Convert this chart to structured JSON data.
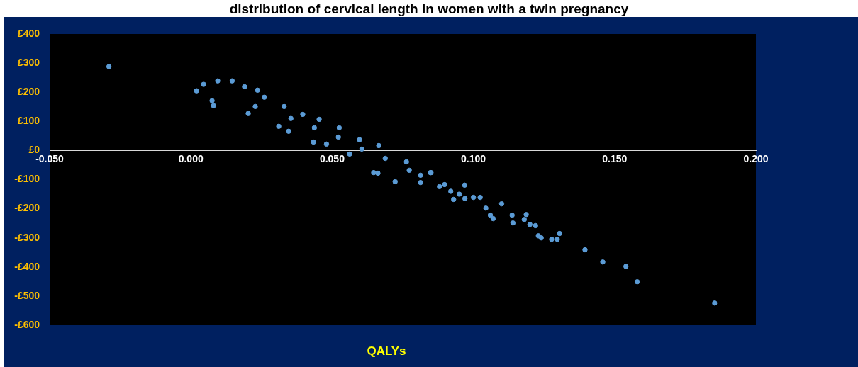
{
  "chart_data": {
    "type": "scatter",
    "title": "distribution of cervical length in women with a twin pregnancy",
    "xlabel": "QALYs",
    "marker": "circle",
    "xlim": [
      -0.05,
      0.2
    ],
    "xticks": [
      {
        "value": -0.05,
        "label": "-0.050"
      },
      {
        "value": 0,
        "label": "0.000"
      },
      {
        "value": 0.05,
        "label": "0.050"
      },
      {
        "value": 0.1,
        "label": "0.100"
      },
      {
        "value": 0.15,
        "label": "0.150"
      },
      {
        "value": 0.2,
        "label": "0.200"
      }
    ],
    "ylim": [
      -600,
      400
    ],
    "yticks": [
      {
        "value": 400,
        "label": "£400"
      },
      {
        "value": 300,
        "label": "£300"
      },
      {
        "value": 200,
        "label": "£200"
      },
      {
        "value": 100,
        "label": "£100"
      },
      {
        "value": 0,
        "label": "£0"
      },
      {
        "value": -100,
        "label": "-£100"
      },
      {
        "value": -200,
        "label": "-£200"
      },
      {
        "value": -300,
        "label": "-£300"
      },
      {
        "value": -400,
        "label": "-£400"
      },
      {
        "value": -500,
        "label": "-£500"
      },
      {
        "value": -600,
        "label": "-£600"
      }
    ],
    "series": [
      {
        "color": "#5b9bd5",
        "x": [
          -0.029,
          0.002,
          0.0045,
          0.0095,
          0.0146,
          0.0075,
          0.008,
          0.019,
          0.0236,
          0.026,
          0.033,
          0.0396,
          0.0454,
          0.0525,
          0.0597,
          0.0665,
          0.0763,
          0.085,
          0.0203,
          0.0311,
          0.0346,
          0.0434,
          0.048,
          0.0562,
          0.0647,
          0.0662,
          0.0723,
          0.0228,
          0.0354,
          0.0437,
          0.0522,
          0.0605,
          0.0688,
          0.0813,
          0.0898,
          0.0773,
          0.0848,
          0.088,
          0.0813,
          0.092,
          0.095,
          0.097,
          0.0969,
          0.093,
          0.1,
          0.1024,
          0.1044,
          0.106,
          0.107,
          0.11,
          0.1137,
          0.114,
          0.1187,
          0.118,
          0.12,
          0.122,
          0.123,
          0.124,
          0.1277,
          0.1297,
          0.1305,
          0.1395,
          0.1458,
          0.154,
          0.158,
          0.1854
        ],
        "values": [
          288,
          205,
          227,
          239,
          239,
          171,
          154,
          219,
          207,
          183,
          151,
          124,
          107,
          78,
          37,
          17,
          -39,
          -76,
          127,
          83,
          66,
          29,
          22,
          -12,
          -76,
          -78,
          -107,
          151,
          110,
          78,
          46,
          5,
          -27,
          -85,
          -117,
          -68,
          -76,
          -124,
          -110,
          -140,
          -150,
          -165,
          -119,
          -168,
          -161,
          -161,
          -198,
          -222,
          -234,
          -183,
          -222,
          -249,
          -220,
          -237,
          -254,
          -258,
          -293,
          -300,
          -305,
          -305,
          -285,
          -341,
          -383,
          -398,
          -451,
          -524
        ]
      }
    ]
  }
}
